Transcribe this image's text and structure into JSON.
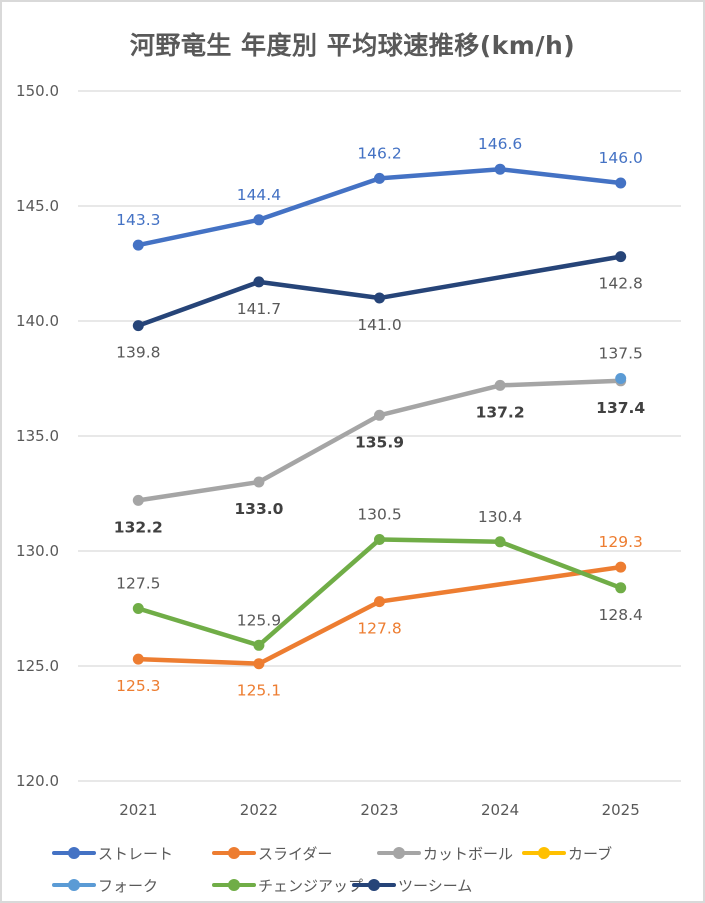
{
  "chart_data": {
    "type": "line",
    "title": "河野竜生 年度別 平均球速推移(km/h)",
    "xlabel": "",
    "ylabel": "",
    "categories": [
      "2021",
      "2022",
      "2023",
      "2024",
      "2025"
    ],
    "ylim": [
      120,
      150
    ],
    "yticks": [
      "120.0",
      "125.0",
      "130.0",
      "135.0",
      "140.0",
      "145.0",
      "150.0"
    ],
    "ytick_values": [
      120,
      125,
      130,
      135,
      140,
      145,
      150
    ],
    "grid": true,
    "legend_position": "bottom",
    "series": [
      {
        "name": "ストレート",
        "color": "#4472c4",
        "label_color": "#4472c4",
        "label_pos": [
          "above",
          "above",
          "above",
          "above",
          "above"
        ],
        "label_bold": false,
        "values": [
          143.3,
          144.4,
          146.2,
          146.6,
          146.0
        ]
      },
      {
        "name": "スライダー",
        "color": "#ed7d31",
        "label_color": "#ed7d31",
        "label_pos": [
          "below",
          "below",
          "below",
          null,
          "above"
        ],
        "label_bold": false,
        "values": [
          125.3,
          125.1,
          127.8,
          null,
          129.3
        ]
      },
      {
        "name": "カットボール",
        "color": "#a5a5a5",
        "label_color": "#404040",
        "label_pos": [
          "below",
          "below",
          "below",
          "below",
          "below"
        ],
        "label_bold": true,
        "values": [
          132.2,
          133.0,
          135.9,
          137.2,
          137.4
        ]
      },
      {
        "name": "カーブ",
        "color": "#ffc000",
        "label_color": "#404040",
        "label_pos": [
          null,
          null,
          null,
          null,
          null
        ],
        "label_bold": false,
        "values": [
          null,
          null,
          null,
          null,
          null
        ]
      },
      {
        "name": "フォーク",
        "color": "#5b9bd5",
        "label_color": "#595959",
        "label_pos": [
          null,
          null,
          null,
          null,
          "above"
        ],
        "label_bold": false,
        "values": [
          null,
          null,
          null,
          null,
          137.5
        ]
      },
      {
        "name": "チェンジアップ",
        "color": "#70ad47",
        "label_color": "#595959",
        "label_pos": [
          "above",
          "above",
          "above",
          "above",
          "below"
        ],
        "label_bold": false,
        "values": [
          127.5,
          125.9,
          130.5,
          130.4,
          128.4
        ]
      },
      {
        "name": "ツーシーム",
        "color": "#264478",
        "label_color": "#595959",
        "label_pos": [
          "below",
          "below",
          "below",
          null,
          "below"
        ],
        "label_bold": false,
        "values": [
          139.8,
          141.7,
          141.0,
          null,
          142.8
        ]
      }
    ]
  }
}
